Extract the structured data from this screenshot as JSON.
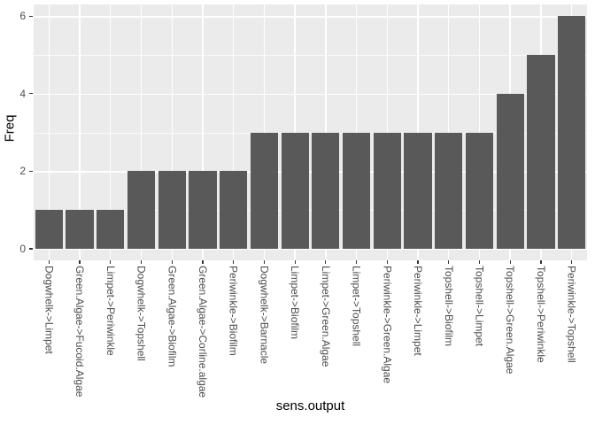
{
  "figure": {
    "background": "#FFFFFF",
    "panel_background": "#EBEBEB",
    "bar_fill": "#595959",
    "gridline_color": "#FFFFFF",
    "tick_mark_color": "#333333",
    "axis_text_color": "#4D4D4D",
    "axis_title_color": "#000000"
  },
  "chart_data": {
    "type": "bar",
    "title": "",
    "xlabel": "sens.output",
    "ylabel": "Freq",
    "categories": [
      "Dogwhelk->Limpet",
      "Green.Algae->Fucoid.Algae",
      "Limpet->Periwinkle",
      "Dogwhelk->Topshell",
      "Green.Algae->Biofilm",
      "Green.Algae->Corline.algae",
      "Periwinkle->Biofilm",
      "Dogwhelk->Barnacle",
      "Limpet->Biofilm",
      "Limpet->Green.Algae",
      "Limpet->Topshell",
      "Periwinkle->Green.Algae",
      "Periwinkle->Limpet",
      "Topshell->Biofilm",
      "Topshell->Limpet",
      "Topshell->Green.Algae",
      "Topshell->Periwinkle",
      "Periwinkle->Topshell"
    ],
    "values": [
      1,
      1,
      1,
      2,
      2,
      2,
      2,
      3,
      3,
      3,
      3,
      3,
      3,
      3,
      3,
      4,
      5,
      6
    ],
    "y_major_ticks": [
      0,
      2,
      4,
      6
    ],
    "y_tick_labels": [
      "0",
      "2",
      "4",
      "6"
    ],
    "y_minor_ticks": [
      1,
      3,
      5
    ],
    "ylim": [
      0,
      6
    ],
    "grid": true,
    "legend_position": "none",
    "bar_width_fraction": 0.9,
    "x_label_rotation": -90,
    "style": "ggplot2 theme_grey"
  }
}
